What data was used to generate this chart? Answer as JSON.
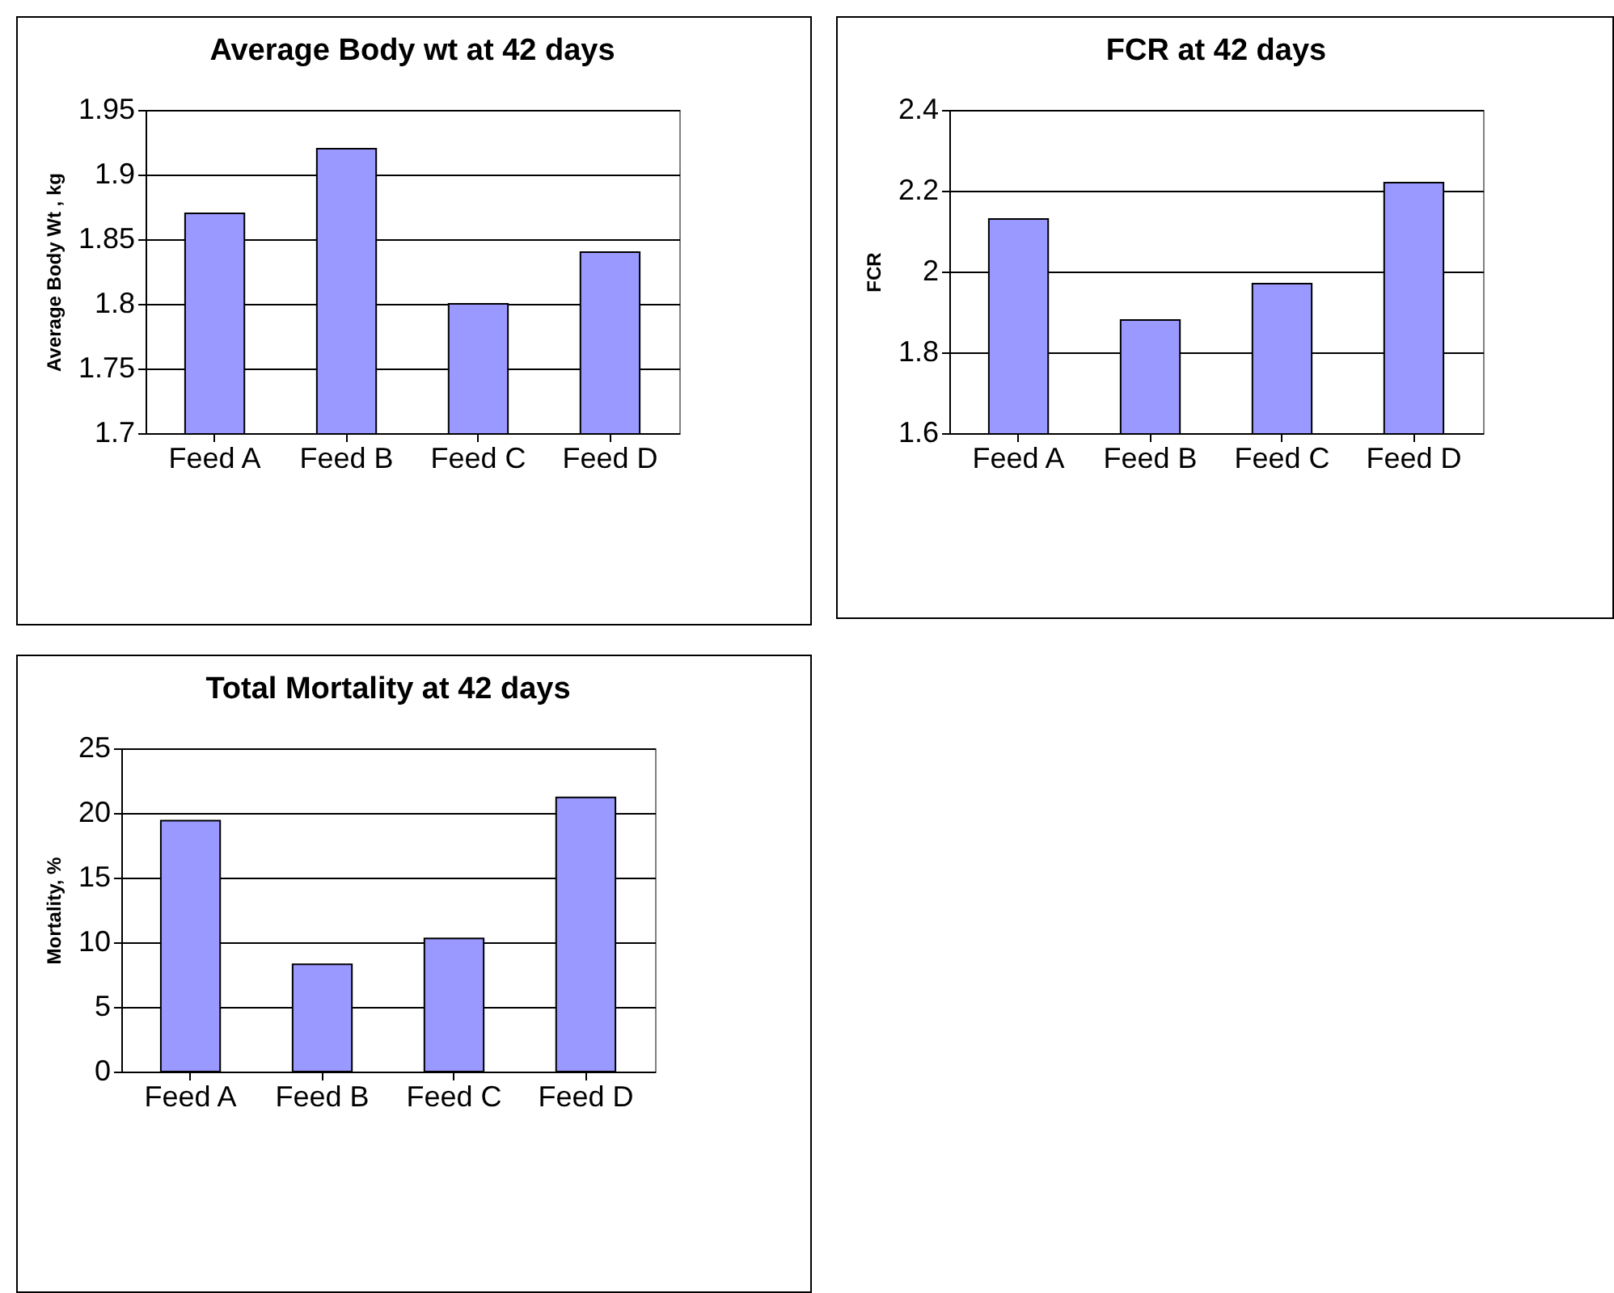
{
  "chart_data": [
    {
      "type": "bar",
      "title": "Average Body wt at 42 days",
      "ylabel": "Average Body Wt , kg",
      "categories": [
        "Feed A",
        "Feed B",
        "Feed C",
        "Feed D"
      ],
      "values": [
        1.87,
        1.92,
        1.8,
        1.84
      ],
      "color": "#9999ff",
      "ylim": [
        1.7,
        1.95
      ],
      "yticks": [
        1.7,
        1.75,
        1.8,
        1.85,
        1.9,
        1.95
      ],
      "grid": "y"
    },
    {
      "type": "bar",
      "title": "FCR at 42 days",
      "ylabel": "FCR",
      "categories": [
        "Feed A",
        "Feed B",
        "Feed C",
        "Feed D"
      ],
      "values": [
        2.13,
        1.88,
        1.97,
        2.22
      ],
      "color": "#9999ff",
      "ylim": [
        1.6,
        2.4
      ],
      "yticks": [
        1.6,
        1.8,
        2,
        2.2,
        2.4
      ],
      "grid": "y"
    },
    {
      "type": "bar",
      "title": "Total Mortality at 42 days",
      "ylabel": "Mortality, %",
      "categories": [
        "Feed A",
        "Feed B",
        "Feed C",
        "Feed D"
      ],
      "values": [
        19.4,
        8.3,
        10.3,
        21.2
      ],
      "color": "#9999ff",
      "ylim": [
        0,
        25
      ],
      "yticks": [
        0,
        5,
        10,
        15,
        20,
        25
      ],
      "grid": "y"
    }
  ]
}
